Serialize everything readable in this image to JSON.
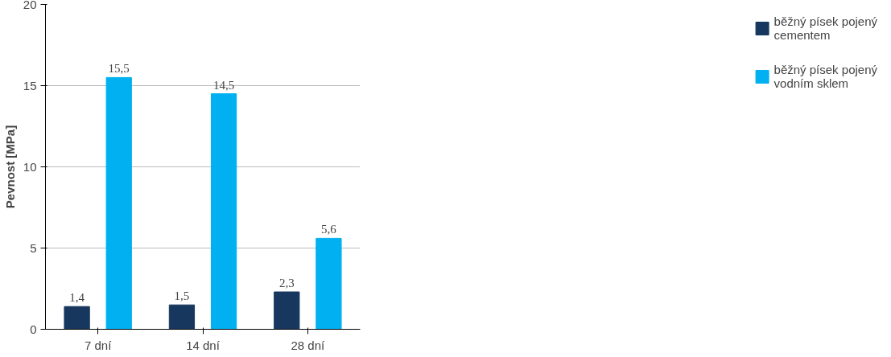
{
  "chart_data": {
    "type": "bar",
    "ylabel": "Pevnost [MPa]",
    "categories": [
      "7 dní",
      "14 dní",
      "28 dní"
    ],
    "series": [
      {
        "name": "běžný písek pojený cementem",
        "color": "#17375e",
        "values": [
          1.4,
          1.5,
          2.3
        ],
        "value_labels": [
          "1,4",
          "1,5",
          "2,3"
        ]
      },
      {
        "name": "běžný písek pojený vodním sklem",
        "color": "#00b0f0",
        "values": [
          15.5,
          14.5,
          5.6
        ],
        "value_labels": [
          "15,5",
          "14,5",
          "5,6"
        ]
      }
    ],
    "ylim": [
      0,
      20
    ],
    "yticks": [
      0,
      5,
      10,
      15,
      20
    ],
    "grid": "y",
    "legend": "right"
  }
}
